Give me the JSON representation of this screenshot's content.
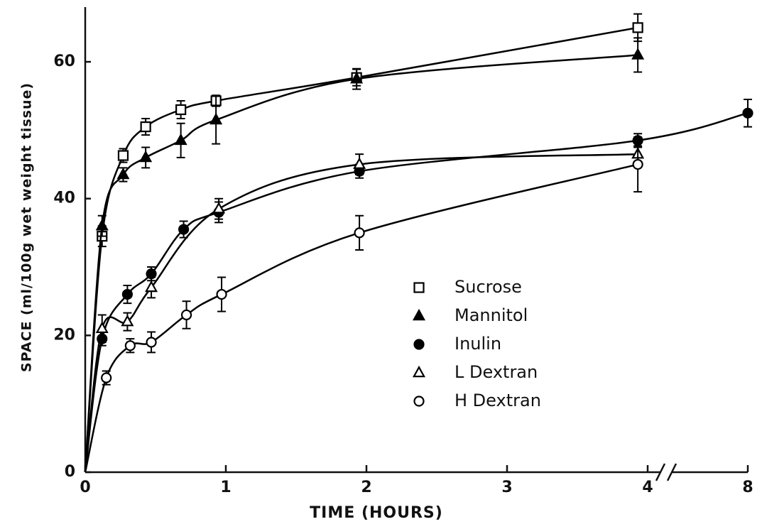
{
  "chart_data": {
    "type": "scatter",
    "x_label": "TIME (HOURS)",
    "y_label": "SPACE (ml/100g wet weight tissue)",
    "xlim": [
      0,
      8
    ],
    "xticks": [
      0,
      1,
      2,
      3,
      4,
      8
    ],
    "xbreak": 4,
    "ylim": [
      0,
      68
    ],
    "yticks": [
      0,
      20,
      40,
      60
    ],
    "legend": "center right",
    "series": [
      {
        "name": "Sucrose",
        "color": "#000000",
        "marker": "square",
        "filled": false,
        "x": [
          0.12,
          0.27,
          0.43,
          0.68,
          0.93,
          1.93,
          3.93
        ],
        "values": [
          34.5,
          46.3,
          50.5,
          53,
          54.3,
          57.7,
          65
        ],
        "errors": [
          1.5,
          1,
          1.2,
          1.3,
          0.8,
          1.2,
          2
        ]
      },
      {
        "name": "Mannitol",
        "color": "#000000",
        "marker": "triangle",
        "filled": true,
        "x": [
          0.12,
          0.27,
          0.43,
          0.68,
          0.93,
          1.93,
          3.93
        ],
        "values": [
          36,
          43.5,
          46,
          48.5,
          51.5,
          57.5,
          61
        ],
        "errors": [
          1.5,
          1,
          1.5,
          2.5,
          3.5,
          1.5,
          2.5
        ]
      },
      {
        "name": "Inulin",
        "color": "#000000",
        "marker": "circle",
        "filled": true,
        "x": [
          0.12,
          0.3,
          0.47,
          0.7,
          0.95,
          1.95,
          3.93,
          8
        ],
        "values": [
          19.5,
          26,
          29,
          35.5,
          38,
          44,
          48.5,
          52.5
        ],
        "errors": [
          1,
          1.3,
          1,
          1.2,
          1.5,
          1,
          1,
          2
        ]
      },
      {
        "name": "L Dextran",
        "color": "#000000",
        "marker": "triangle",
        "filled": false,
        "x": [
          0.12,
          0.3,
          0.47,
          0.95,
          1.95,
          3.93
        ],
        "values": [
          21,
          22,
          27,
          38.5,
          45,
          46.5
        ],
        "errors": [
          2,
          1.3,
          1.5,
          1.5,
          1.5,
          1.2
        ]
      },
      {
        "name": "H Dextran",
        "color": "#000000",
        "marker": "circle",
        "filled": false,
        "x": [
          0.15,
          0.32,
          0.47,
          0.72,
          0.97,
          1.95,
          3.93
        ],
        "values": [
          13.8,
          18.5,
          19,
          23,
          26,
          35,
          45
        ],
        "errors": [
          1,
          1,
          1.5,
          2,
          2.5,
          2.5,
          4
        ]
      }
    ]
  }
}
